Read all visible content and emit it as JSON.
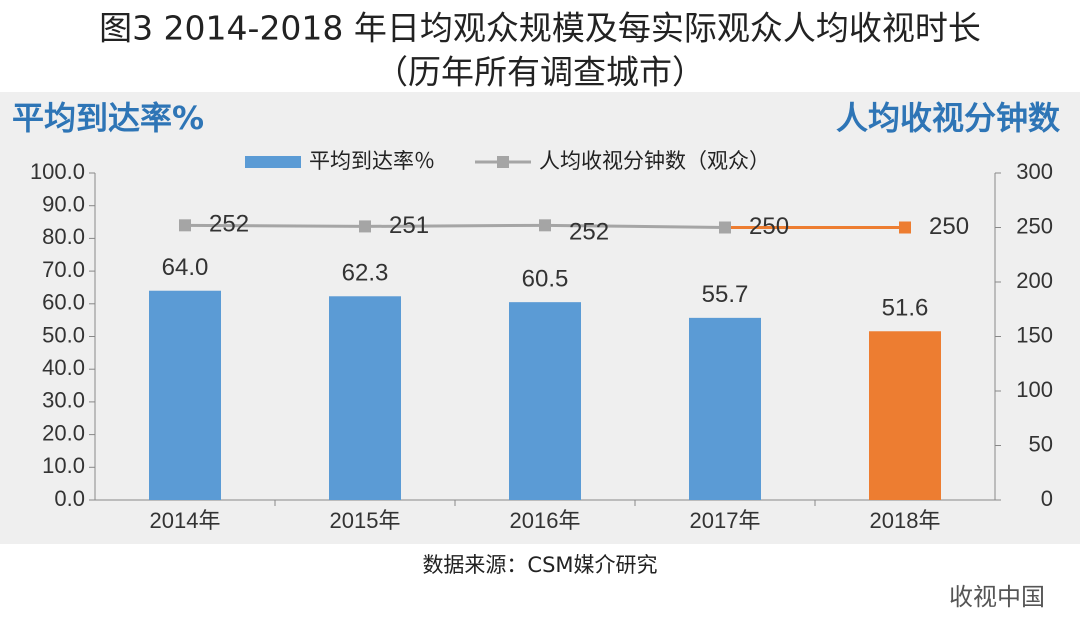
{
  "chart_data": {
    "type": "bar",
    "title": "图3 2014-2018 年日均观众规模及每实际观众人均收视时长",
    "subtitle": "（历年所有调查城市）",
    "y_axis_title": "平均到达率%",
    "y2_axis_title": "人均收视分钟数",
    "source": "数据来源：CSM媒介研究",
    "watermark": "收视中国",
    "categories": [
      "2014年",
      "2015年",
      "2016年",
      "2017年",
      "2018年"
    ],
    "ylim": [
      0,
      100
    ],
    "yticks": [
      {
        "value": 0,
        "label": "0.0"
      },
      {
        "value": 10,
        "label": "10.0"
      },
      {
        "value": 20,
        "label": "20.0"
      },
      {
        "value": 30,
        "label": "30.0"
      },
      {
        "value": 40,
        "label": "40.0"
      },
      {
        "value": 50,
        "label": "50.0"
      },
      {
        "value": 60,
        "label": "60.0"
      },
      {
        "value": 70,
        "label": "70.0"
      },
      {
        "value": 80,
        "label": "80.0"
      },
      {
        "value": 90,
        "label": "90.0"
      },
      {
        "value": 100,
        "label": "100.0"
      }
    ],
    "y2lim": [
      0,
      300
    ],
    "y2ticks": [
      0,
      50,
      100,
      150,
      200,
      250,
      300
    ],
    "series": [
      {
        "name": "平均到达率％",
        "type": "bar",
        "color": "#5b9bd5",
        "colors": [
          "#5b9bd5",
          "#5b9bd5",
          "#5b9bd5",
          "#5b9bd5",
          "#ed7d31"
        ],
        "values": [
          64.0,
          62.3,
          60.5,
          55.7,
          51.6
        ],
        "value_labels": [
          "64.0",
          "62.3",
          "60.5",
          "55.7",
          "51.6"
        ]
      },
      {
        "name": "人均收视分钟数（观众）",
        "type": "line",
        "axis": "y2",
        "color": "#a5a5a5",
        "colors": [
          "#a5a5a5",
          "#a5a5a5",
          "#a5a5a5",
          "#a5a5a5",
          "#ed7d31"
        ],
        "values": [
          252,
          251,
          252,
          250,
          250
        ]
      }
    ]
  }
}
